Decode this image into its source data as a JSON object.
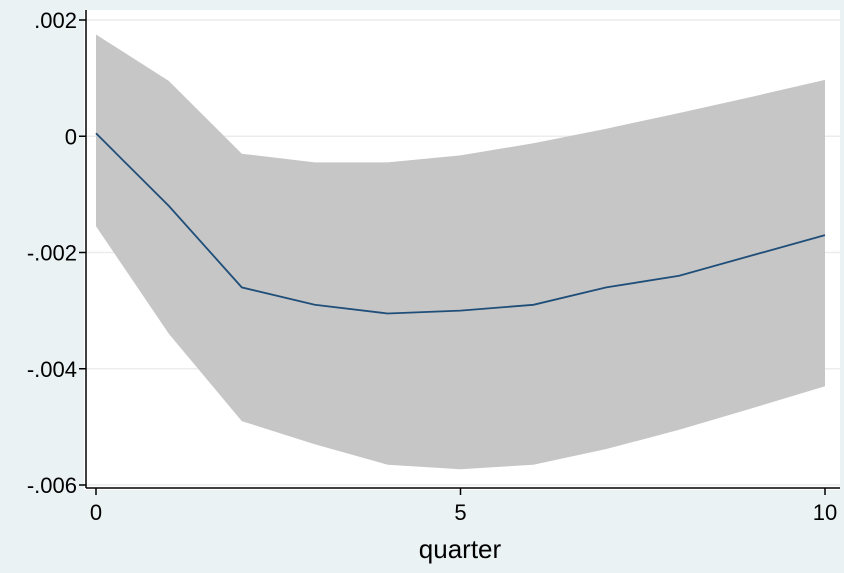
{
  "chart_data": {
    "type": "line",
    "title": "",
    "xlabel": "quarter",
    "ylabel": "",
    "xlim": [
      0,
      10
    ],
    "ylim": [
      -0.006,
      0.002
    ],
    "x_ticks": [
      {
        "value": 0,
        "label": "0"
      },
      {
        "value": 5,
        "label": "5"
      },
      {
        "value": 10,
        "label": "10"
      }
    ],
    "y_ticks": [
      {
        "value": 0.002,
        "label": ".002"
      },
      {
        "value": 0,
        "label": "0"
      },
      {
        "value": -0.002,
        "label": "-.002"
      },
      {
        "value": -0.004,
        "label": "-.004"
      },
      {
        "value": -0.006,
        "label": "-.006"
      }
    ],
    "grid": "horizontal",
    "legend": "none",
    "series": [
      {
        "kind": "band",
        "x": [
          0,
          1,
          2,
          3,
          4,
          5,
          6,
          7,
          8,
          9,
          10
        ],
        "upper": [
          0.00175,
          0.00095,
          -0.0003,
          -0.00045,
          -0.00045,
          -0.00033,
          -0.00012,
          0.00013,
          0.0004,
          0.00068,
          0.00097
        ],
        "lower": [
          -0.00155,
          -0.0034,
          -0.0049,
          -0.0053,
          -0.00565,
          -0.00573,
          -0.00565,
          -0.00538,
          -0.00505,
          -0.00468,
          -0.0043
        ],
        "color": "#c6c6c6"
      },
      {
        "kind": "line",
        "x": [
          0,
          1,
          2,
          3,
          4,
          5,
          6,
          7,
          8,
          9,
          10
        ],
        "y": [
          5e-05,
          -0.0012,
          -0.0026,
          -0.0029,
          -0.00305,
          -0.003,
          -0.0029,
          -0.0026,
          -0.0024,
          -0.00205,
          -0.0017
        ],
        "color": "#1f4e79"
      }
    ]
  }
}
